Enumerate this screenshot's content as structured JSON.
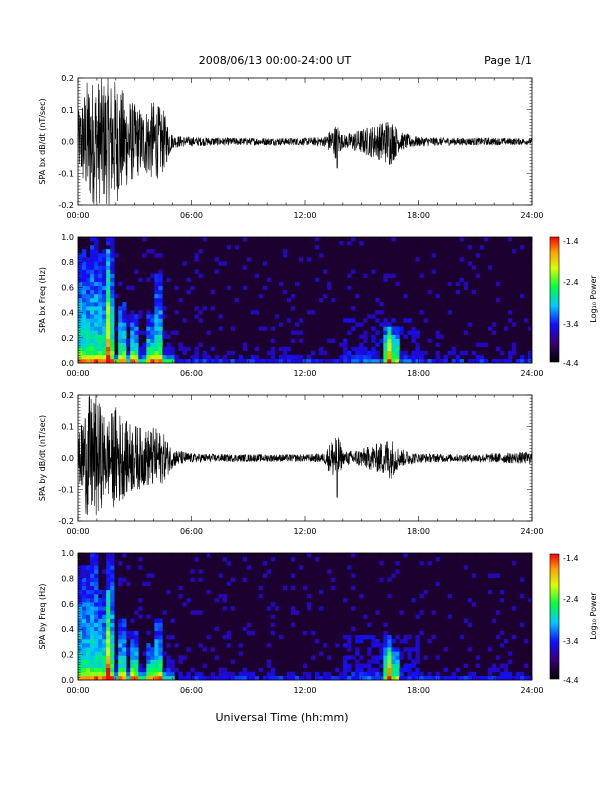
{
  "header": {
    "title": "2008/06/13  00:00-24:00 UT",
    "page": "Page 1/1"
  },
  "footer": {
    "xlabel": "Universal Time (hh:mm)"
  },
  "colorbar": {
    "label": "Log₁₀ Power",
    "ticks": [
      "-1.4",
      "-2.4",
      "-3.4",
      "-4.4"
    ],
    "range": [
      -4.4,
      -1.4
    ]
  },
  "chart_data": [
    {
      "type": "line",
      "ylabel": "SPA bx dB/dt (nT/sec)",
      "xlim": [
        0,
        24
      ],
      "ylim": [
        -0.2,
        0.2
      ],
      "xticks": [
        "00:00",
        "06:00",
        "12:00",
        "18:00",
        "24:00"
      ],
      "yticks": [
        "0.2",
        "0.1",
        "0.0",
        "-0.1",
        "-0.2"
      ],
      "series": [
        {
          "x": [
            0,
            0.5,
            1,
            1.5,
            2,
            2.5,
            3,
            3.5,
            4,
            4.5,
            5,
            6,
            8,
            10,
            12,
            13,
            13.7,
            14,
            15,
            16,
            16.5,
            17,
            18,
            20,
            22,
            24
          ],
          "envelope": [
            0.09,
            0.2,
            0.2,
            0.2,
            0.2,
            0.15,
            0.12,
            0.1,
            0.13,
            0.1,
            0.02,
            0.015,
            0.012,
            0.012,
            0.012,
            0.015,
            0.06,
            0.02,
            0.04,
            0.06,
            0.08,
            0.03,
            0.015,
            0.012,
            0.012,
            0.01
          ]
        }
      ]
    },
    {
      "type": "heatmap",
      "ylabel": "SPA bx Freq (Hz)",
      "xlim": [
        0,
        24
      ],
      "ylim": [
        0.0,
        1.0
      ],
      "xticks": [
        "00:00",
        "06:00",
        "12:00",
        "18:00",
        "24:00"
      ],
      "yticks": [
        "1.0",
        "0.8",
        "0.6",
        "0.4",
        "0.2",
        "0.0"
      ],
      "value_range": [
        -4.4,
        -1.4
      ],
      "bursts": [
        {
          "t": 0.3,
          "top": 0.9
        },
        {
          "t": 0.9,
          "top": 1.0
        },
        {
          "t": 1.4,
          "top": 0.9
        },
        {
          "t": 1.7,
          "top": 1.0
        },
        {
          "t": 2.3,
          "top": 0.5
        },
        {
          "t": 3.0,
          "top": 0.4
        },
        {
          "t": 3.8,
          "top": 0.4
        },
        {
          "t": 4.3,
          "top": 0.7
        },
        {
          "t": 16.3,
          "top": 0.3
        },
        {
          "t": 16.7,
          "top": 0.3
        }
      ]
    },
    {
      "type": "line",
      "ylabel": "SPA by dB/dt (nT/sec)",
      "xlim": [
        0,
        24
      ],
      "ylim": [
        -0.2,
        0.2
      ],
      "xticks": [
        "00:00",
        "06:00",
        "12:00",
        "18:00",
        "24:00"
      ],
      "yticks": [
        "0.2",
        "0.1",
        "0.0",
        "-0.1",
        "-0.2"
      ],
      "series": [
        {
          "x": [
            0,
            0.5,
            1,
            1.5,
            2,
            2.5,
            3,
            3.5,
            4,
            4.5,
            5,
            6,
            8,
            10,
            12,
            13,
            13.7,
            14,
            15,
            16,
            16.5,
            17,
            18,
            20,
            22,
            24
          ],
          "envelope": [
            0.06,
            0.2,
            0.2,
            0.12,
            0.17,
            0.12,
            0.11,
            0.09,
            0.1,
            0.08,
            0.03,
            0.015,
            0.012,
            0.012,
            0.012,
            0.015,
            0.09,
            0.02,
            0.03,
            0.05,
            0.07,
            0.03,
            0.015,
            0.012,
            0.015,
            0.02
          ]
        }
      ]
    },
    {
      "type": "heatmap",
      "ylabel": "SPA by Freq (Hz)",
      "xlim": [
        0,
        24
      ],
      "ylim": [
        0.0,
        1.0
      ],
      "xticks": [
        "00:00",
        "06:00",
        "12:00",
        "18:00",
        "24:00"
      ],
      "yticks": [
        "1.0",
        "0.8",
        "0.6",
        "0.4",
        "0.2",
        "0.0"
      ],
      "value_range": [
        -4.4,
        -1.4
      ],
      "bursts": [
        {
          "t": 0.3,
          "top": 0.9
        },
        {
          "t": 0.9,
          "top": 1.0
        },
        {
          "t": 1.4,
          "top": 0.7
        },
        {
          "t": 1.7,
          "top": 1.0
        },
        {
          "t": 2.3,
          "top": 0.5
        },
        {
          "t": 3.0,
          "top": 0.4
        },
        {
          "t": 3.8,
          "top": 0.3
        },
        {
          "t": 4.3,
          "top": 0.5
        },
        {
          "t": 16.3,
          "top": 0.35
        },
        {
          "t": 16.7,
          "top": 0.25
        }
      ]
    }
  ]
}
